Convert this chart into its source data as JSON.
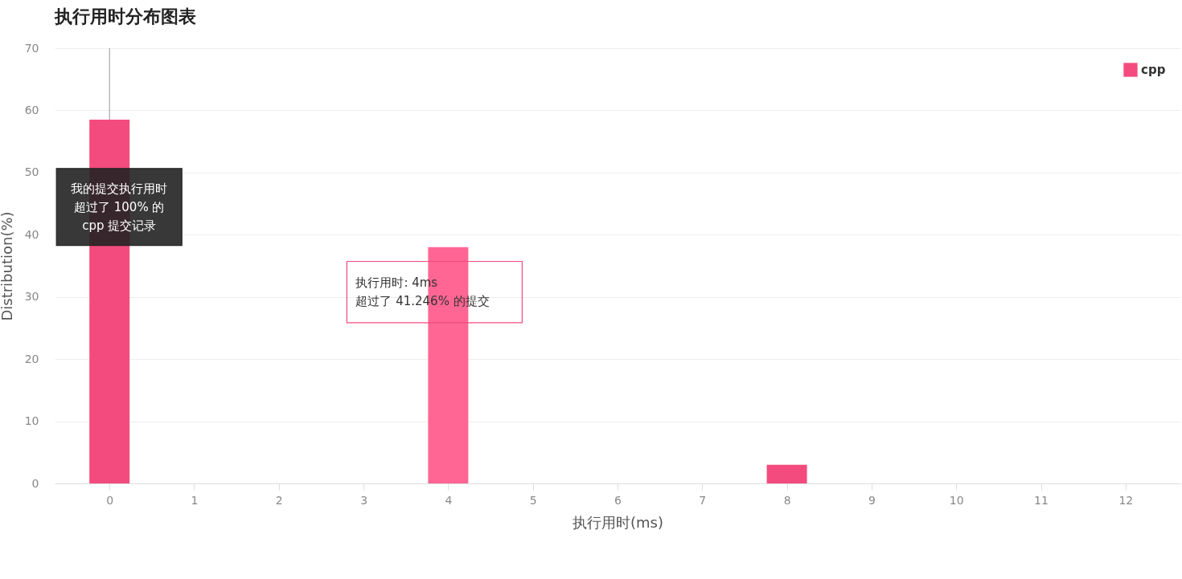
{
  "chart_data": {
    "type": "bar",
    "title": "执行用时分布图表",
    "xlabel": "执行用时(ms)",
    "ylabel": "Distribution(%)",
    "x": [
      0,
      4,
      8
    ],
    "series": [
      {
        "name": "cpp",
        "color": "#f44b7e",
        "values": [
          58.5,
          38,
          3
        ],
        "colors": [
          "#f44b7e",
          "#ff6694",
          "#f44b7e"
        ]
      }
    ],
    "xlim": [
      -0.6,
      12.6
    ],
    "xticks": [
      0,
      1,
      2,
      3,
      4,
      5,
      6,
      7,
      8,
      9,
      10,
      11,
      12
    ],
    "ylim": [
      0,
      70
    ],
    "yticks": [
      0,
      10,
      20,
      30,
      40,
      50,
      60,
      70
    ],
    "grid": "y",
    "legend": "top right",
    "ref_lines": [
      {
        "axis": "x",
        "value": 0,
        "color": "#999999"
      }
    ],
    "annotations": [
      "我的提交执行用时超过了 100% 的 cpp 提交记录",
      "执行用时: 4ms",
      "超过了 41.246% 的提交"
    ]
  }
}
